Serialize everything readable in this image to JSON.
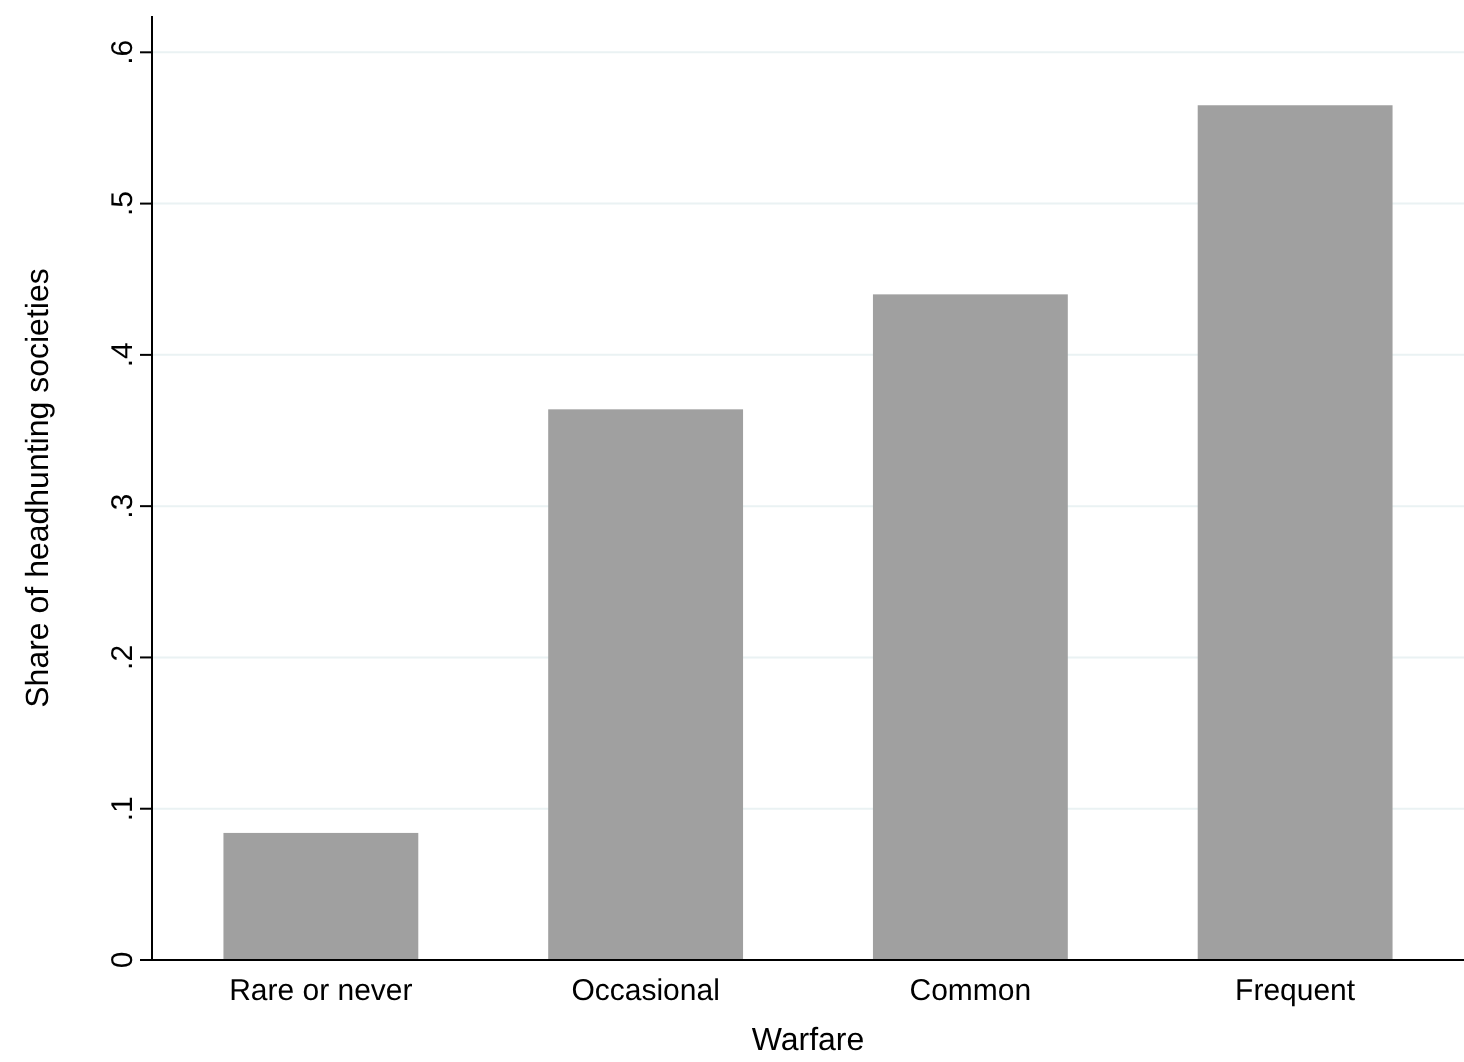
{
  "chart_data": {
    "type": "bar",
    "xlabel": "Warfare",
    "ylabel": "Share of headhunting societies",
    "categories": [
      "Rare or never",
      "Occasional",
      "Common",
      "Frequent"
    ],
    "values": [
      0.084,
      0.364,
      0.44,
      0.565
    ],
    "color": "#a0a0a0",
    "ylim": [
      0,
      0.624
    ],
    "yticks": [
      {
        "value": 0,
        "label": "0"
      },
      {
        "value": 0.1,
        "label": ".1"
      },
      {
        "value": 0.2,
        "label": ".2"
      },
      {
        "value": 0.3,
        "label": ".3"
      },
      {
        "value": 0.4,
        "label": ".4"
      },
      {
        "value": 0.5,
        "label": ".5"
      },
      {
        "value": 0.6,
        "label": ".6"
      }
    ],
    "grid": "y"
  }
}
